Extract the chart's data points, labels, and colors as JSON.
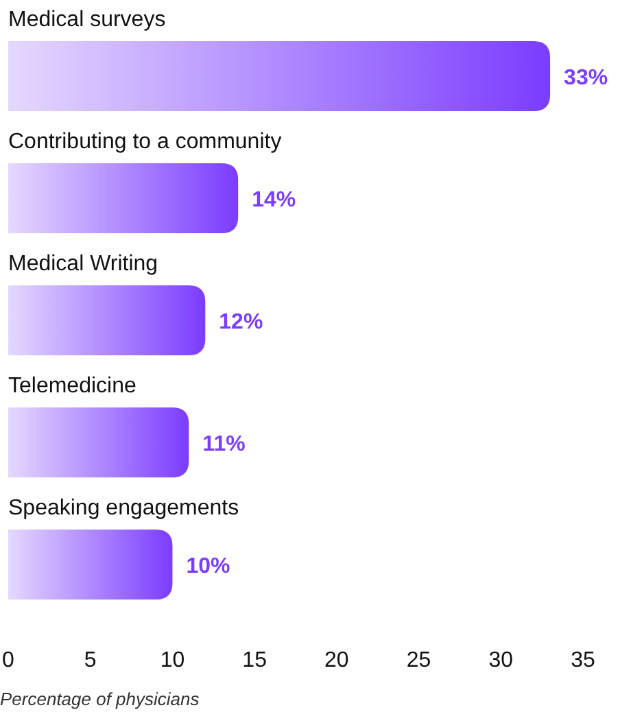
{
  "chart_data": {
    "type": "bar",
    "orientation": "horizontal",
    "xlabel": "Percentage of physicians",
    "categories": [
      "Medical surveys",
      "Contributing to a community",
      "Medical Writing",
      "Telemedicine",
      "Speaking engagements"
    ],
    "values": [
      33,
      14,
      12,
      11,
      10
    ],
    "value_labels": [
      "33%",
      "14%",
      "12%",
      "11%",
      "10%"
    ],
    "color": "#7b3cff",
    "xlim": [
      0,
      35
    ],
    "xticks": [
      0,
      5,
      10,
      15,
      20,
      25,
      30,
      35
    ],
    "grid": false
  }
}
